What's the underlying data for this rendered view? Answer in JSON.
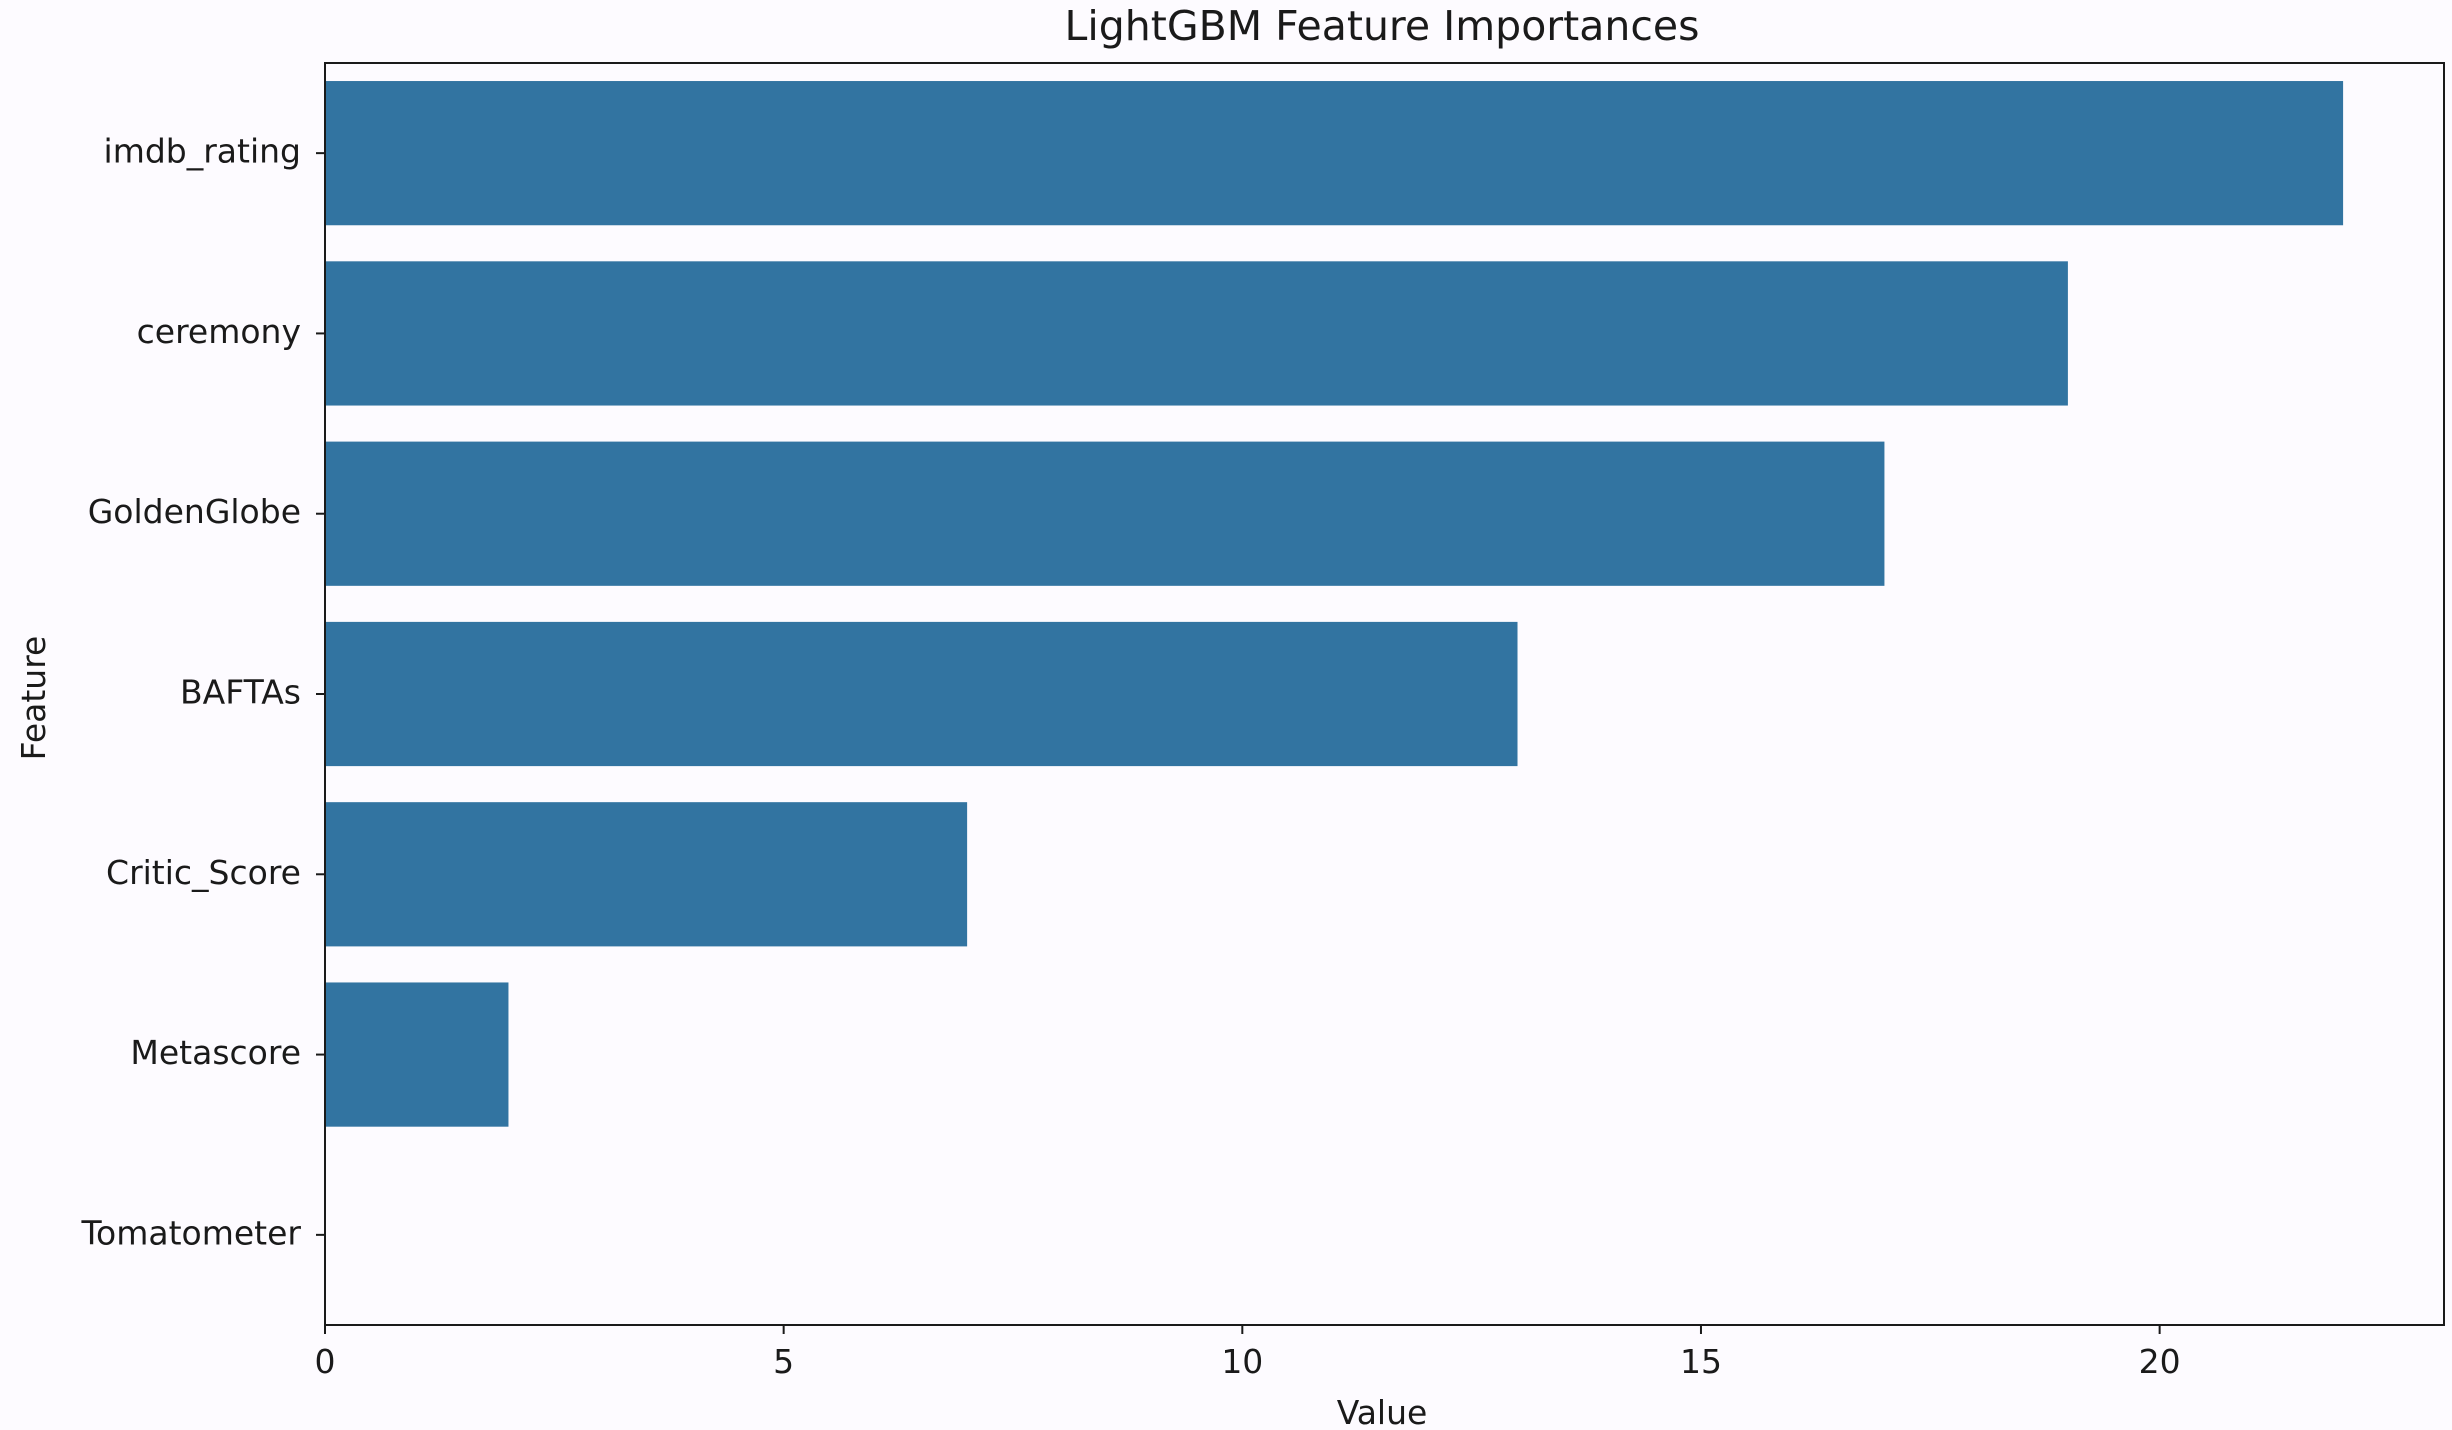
{
  "chart_data": {
    "type": "bar",
    "orientation": "horizontal",
    "title": "LightGBM Feature Importances",
    "xlabel": "Value",
    "ylabel": "Feature",
    "categories": [
      "imdb_rating",
      "ceremony",
      "GoldenGlobe",
      "BAFTAs",
      "Critic_Score",
      "Metascore",
      "Tomatometer"
    ],
    "values": [
      22,
      19,
      17,
      13,
      7,
      2,
      0
    ],
    "xlim": [
      0,
      23.1
    ],
    "xticks": [
      0,
      5,
      10,
      15,
      20
    ],
    "grid": false,
    "legend": "none",
    "bar_color": "#3274a1",
    "background_color": "#fdfbff",
    "axis_color": "#1a1a1a"
  }
}
